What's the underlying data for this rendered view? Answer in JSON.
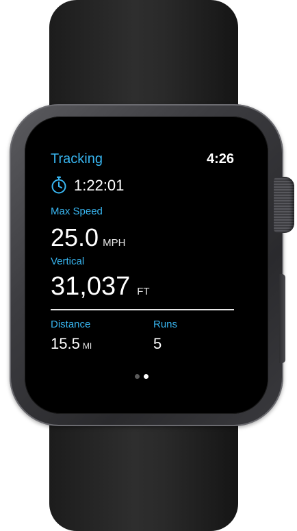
{
  "app": {
    "title": "Tracking",
    "time": "4:26"
  },
  "timer": {
    "icon": "stopwatch-icon",
    "value": "1:22:01"
  },
  "max_speed": {
    "label": "Max Speed",
    "value": "25.0",
    "unit": "MPH"
  },
  "vertical": {
    "label": "Vertical",
    "value": "31,037",
    "unit": "FT"
  },
  "distance": {
    "label": "Distance",
    "value": "15.5",
    "unit": "MI"
  },
  "runs": {
    "label": "Runs",
    "value": "5"
  },
  "pagination": {
    "total": 2,
    "active_index": 1
  },
  "colors": {
    "accent": "#38b6f1",
    "text": "#ffffff",
    "screen_background": "#000000",
    "case": "#3c3c40",
    "band": "#2a2a2a"
  }
}
